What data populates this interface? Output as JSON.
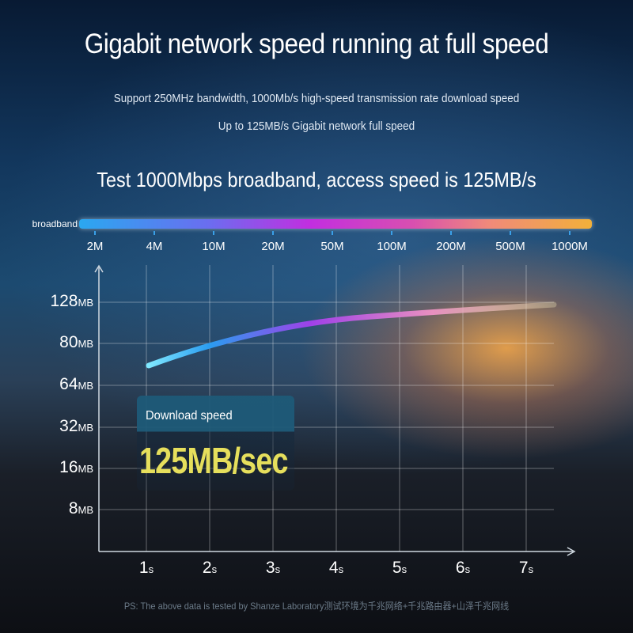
{
  "title": "Gigabit network speed running at full speed",
  "subtitle1": "Support 250MHz bandwidth, 1000Mb/s high-speed transmission rate download speed",
  "subtitle2": "Up to 125MB/s Gigabit network full speed",
  "test_line": "Test 1000Mbps broadband, access speed is 125MB/s",
  "broadband": {
    "label": "broadband",
    "ticks": [
      "2M",
      "4M",
      "10M",
      "20M",
      "50M",
      "100M",
      "200M",
      "500M",
      "1000M"
    ],
    "gradient": [
      "#2aa8f0",
      "#c22ee0",
      "#f2b03a"
    ]
  },
  "chart": {
    "y_labels": [
      {
        "v": "128",
        "u": "MB"
      },
      {
        "v": "80",
        "u": "MB"
      },
      {
        "v": "64",
        "u": "MB"
      },
      {
        "v": "32",
        "u": "MB"
      },
      {
        "v": "16",
        "u": "MB"
      },
      {
        "v": "8",
        "u": "MB"
      }
    ],
    "x_labels": [
      {
        "v": "1",
        "u": "s"
      },
      {
        "v": "2",
        "u": "s"
      },
      {
        "v": "3",
        "u": "s"
      },
      {
        "v": "4",
        "u": "s"
      },
      {
        "v": "5",
        "u": "s"
      },
      {
        "v": "6",
        "u": "s"
      },
      {
        "v": "7",
        "u": "s"
      }
    ]
  },
  "callout": {
    "label": "Download speed",
    "value": "125MB/sec",
    "value_color": "#e6df5c"
  },
  "footnote": "PS: The above data is tested by Shanze Laboratory测试环境为千兆网络+千兆路由器+山泽千兆网线"
}
